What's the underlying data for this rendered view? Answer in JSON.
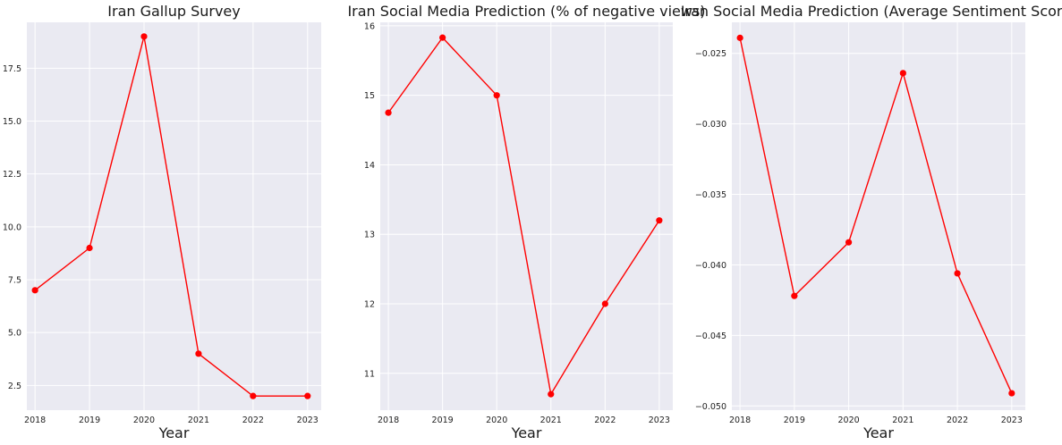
{
  "chart_data": [
    {
      "type": "line",
      "title": "Iran Gallup Survey",
      "xlabel": "Year",
      "ylabel": "",
      "x": [
        2018,
        2019,
        2020,
        2021,
        2022,
        2023
      ],
      "series": [
        {
          "values": [
            7,
            9,
            19,
            4,
            2,
            2
          ]
        }
      ],
      "xlim": [
        2017.85,
        2023.25
      ],
      "ylim": [
        1.33,
        19.67
      ],
      "yticks": [
        2.5,
        5.0,
        7.5,
        10.0,
        12.5,
        15.0,
        17.5
      ],
      "ytick_labels": [
        "2.5",
        "5.0",
        "7.5",
        "10.0",
        "12.5",
        "15.0",
        "17.5"
      ],
      "xtick_labels": [
        "2018",
        "2019",
        "2020",
        "2021",
        "2022",
        "2023"
      ],
      "grid": true,
      "color": "#ff0000"
    },
    {
      "type": "line",
      "title": "Iran Social Media Prediction (% of negative views)",
      "xlabel": "Year",
      "ylabel": "",
      "x": [
        2018,
        2019,
        2020,
        2021,
        2022,
        2023
      ],
      "series": [
        {
          "values": [
            14.75,
            15.83,
            15.0,
            10.7,
            12.0,
            13.2
          ]
        }
      ],
      "xlim": [
        2017.85,
        2023.25
      ],
      "ylim": [
        10.47,
        16.05
      ],
      "yticks": [
        11,
        12,
        13,
        14,
        15,
        16
      ],
      "ytick_labels": [
        "11",
        "12",
        "13",
        "14",
        "15",
        "16"
      ],
      "xtick_labels": [
        "2018",
        "2019",
        "2020",
        "2021",
        "2022",
        "2023"
      ],
      "grid": true,
      "color": "#ff0000"
    },
    {
      "type": "line",
      "title": "Iran Social Media Prediction (Average Sentiment Score)",
      "xlabel": "Year",
      "ylabel": "",
      "x": [
        2018,
        2019,
        2020,
        2021,
        2022,
        2023
      ],
      "series": [
        {
          "values": [
            -0.0239,
            -0.0422,
            -0.0384,
            -0.0264,
            -0.0406,
            -0.0491
          ]
        }
      ],
      "xlim": [
        2017.85,
        2023.25
      ],
      "ylim": [
        -0.0503,
        -0.0228
      ],
      "yticks": [
        -0.05,
        -0.045,
        -0.04,
        -0.035,
        -0.03,
        -0.025
      ],
      "ytick_labels": [
        "−0.050",
        "−0.045",
        "−0.040",
        "−0.035",
        "−0.030",
        "−0.025"
      ],
      "xtick_labels": [
        "2018",
        "2019",
        "2020",
        "2021",
        "2022",
        "2023"
      ],
      "grid": true,
      "color": "#ff0000"
    }
  ],
  "style": {
    "plot_background": "#eaeaf2",
    "grid_color": "#ffffff",
    "line_color": "#ff0000"
  }
}
